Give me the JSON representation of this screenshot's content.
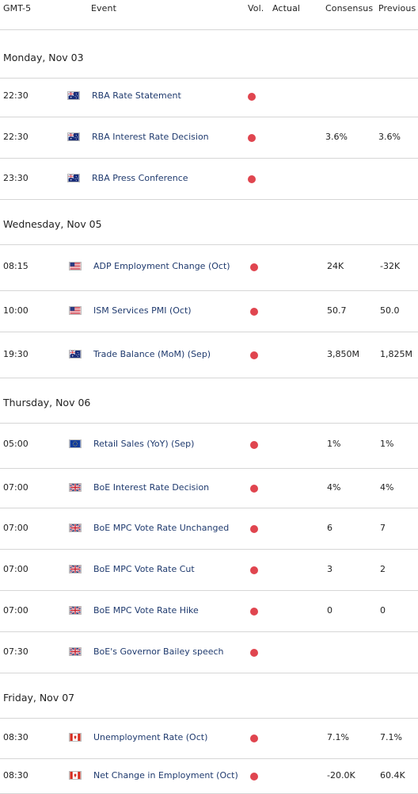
{
  "header": {
    "timezone": "GMT-5",
    "event": "Event",
    "vol": "Vol.",
    "actual": "Actual",
    "consensus": "Consensus",
    "previous": "Previous"
  },
  "colors": {
    "volatility_high": "#e0454f",
    "event_text": "#1f3a6e",
    "divider": "#d6d6d6"
  },
  "days": [
    {
      "label": "Monday, Nov 03",
      "events": [
        {
          "time": "22:30",
          "flag": "flag-au-icon",
          "name": "RBA Rate Statement",
          "actual": "",
          "consensus": "",
          "previous": ""
        },
        {
          "time": "22:30",
          "flag": "flag-au-icon",
          "name": "RBA Interest Rate Decision",
          "actual": "",
          "consensus": "3.6%",
          "previous": "3.6%"
        },
        {
          "time": "23:30",
          "flag": "flag-au-icon",
          "name": "RBA Press Conference",
          "actual": "",
          "consensus": "",
          "previous": ""
        }
      ]
    },
    {
      "label": "Wednesday, Nov 05",
      "events": [
        {
          "time": "08:15",
          "flag": "flag-us-icon",
          "name": "ADP Employment Change (Oct)",
          "actual": "",
          "consensus": "24K",
          "previous": "-32K"
        },
        {
          "time": "10:00",
          "flag": "flag-us-icon",
          "name": "ISM Services PMI (Oct)",
          "actual": "",
          "consensus": "50.7",
          "previous": "50.0"
        },
        {
          "time": "19:30",
          "flag": "flag-au-icon",
          "name": "Trade Balance (MoM) (Sep)",
          "actual": "",
          "consensus": "3,850M",
          "previous": "1,825M"
        }
      ]
    },
    {
      "label": "Thursday, Nov 06",
      "events": [
        {
          "time": "05:00",
          "flag": "flag-eu-icon",
          "name": "Retail Sales (YoY) (Sep)",
          "actual": "",
          "consensus": "1%",
          "previous": "1%"
        },
        {
          "time": "07:00",
          "flag": "flag-uk-icon",
          "name": "BoE Interest Rate Decision",
          "actual": "",
          "consensus": "4%",
          "previous": "4%"
        },
        {
          "time": "07:00",
          "flag": "flag-uk-icon",
          "name": "BoE MPC Vote Rate Unchanged",
          "actual": "",
          "consensus": "6",
          "previous": "7"
        },
        {
          "time": "07:00",
          "flag": "flag-uk-icon",
          "name": "BoE MPC Vote Rate Cut",
          "actual": "",
          "consensus": "3",
          "previous": "2"
        },
        {
          "time": "07:00",
          "flag": "flag-uk-icon",
          "name": "BoE MPC Vote Rate Hike",
          "actual": "",
          "consensus": "0",
          "previous": "0"
        },
        {
          "time": "07:30",
          "flag": "flag-uk-icon",
          "name": "BoE's Governor Bailey speech",
          "actual": "",
          "consensus": "",
          "previous": ""
        }
      ]
    },
    {
      "label": "Friday, Nov 07",
      "events": [
        {
          "time": "08:30",
          "flag": "flag-ca-icon",
          "name": "Unemployment Rate (Oct)",
          "actual": "",
          "consensus": "7.1%",
          "previous": "7.1%"
        },
        {
          "time": "08:30",
          "flag": "flag-ca-icon",
          "name": "Net Change in Employment (Oct)",
          "actual": "",
          "consensus": "-20.0K",
          "previous": "60.4K"
        }
      ]
    }
  ]
}
